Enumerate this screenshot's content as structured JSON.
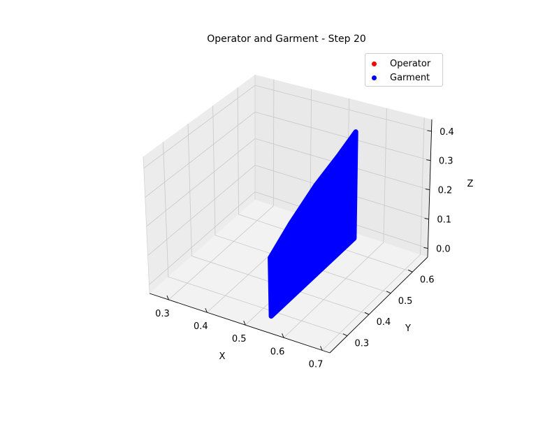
{
  "chart_data": {
    "type": "scatter",
    "projection": "3d",
    "title": "Operator and Garment - Step 20",
    "xlabel": "X",
    "ylabel": "Y",
    "zlabel": "Z",
    "x_ticks": [
      "0.3",
      "0.4",
      "0.5",
      "0.6",
      "0.7"
    ],
    "y_ticks": [
      "0.3",
      "0.4",
      "0.5",
      "0.6"
    ],
    "z_ticks": [
      "0.0",
      "0.1",
      "0.2",
      "0.3",
      "0.4"
    ],
    "xlim": [
      0.25,
      0.72
    ],
    "ylim": [
      0.22,
      0.67
    ],
    "zlim": [
      -0.03,
      0.44
    ],
    "grid": true,
    "legend_position": "top-right",
    "series": [
      {
        "name": "Operator",
        "color": "#ff0000",
        "points": []
      },
      {
        "name": "Garment",
        "color": "#0000ff",
        "surface": {
          "x": [
            0.55,
            0.55
          ],
          "y": [
            0.25,
            0.62
          ],
          "z_bottom": [
            0.0,
            0.0
          ],
          "z_top": [
            0.2,
            0.38
          ],
          "z_top_profile": [
            [
              0.25,
              0.2
            ],
            [
              0.34,
              0.255
            ],
            [
              0.45,
              0.31
            ],
            [
              0.55,
              0.345
            ],
            [
              0.62,
              0.375
            ]
          ]
        }
      }
    ]
  }
}
